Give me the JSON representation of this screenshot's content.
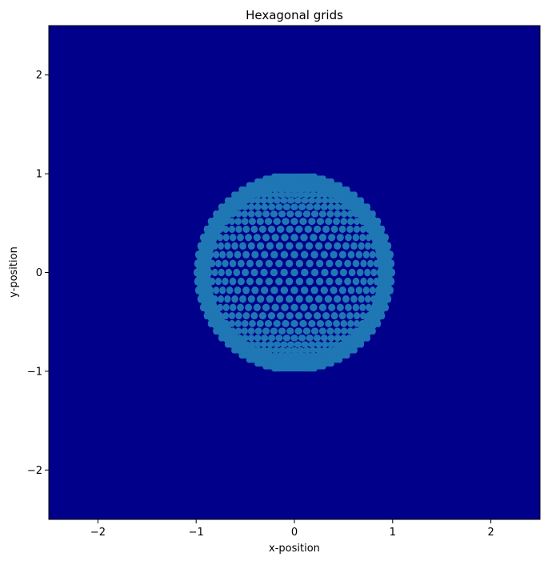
{
  "chart_data": {
    "type": "scatter",
    "title": "Hexagonal grids",
    "xlabel": "x-position",
    "ylabel": "y-position",
    "xlim": [
      -2.5,
      2.5
    ],
    "ylim": [
      -2.5,
      2.5
    ],
    "xticks": [
      -2,
      -1,
      0,
      1,
      2
    ],
    "yticks": [
      -2,
      -1,
      0,
      1,
      2
    ],
    "xtick_labels": [
      "−2",
      "−1",
      "0",
      "1",
      "2"
    ],
    "ytick_labels": [
      "−2",
      "−1",
      "0",
      "1",
      "2"
    ],
    "grid": false,
    "legend": "none",
    "background_color": "#00008b",
    "marker_color": "#1f77b4",
    "series": [
      {
        "shape": "disk",
        "center": [
          0,
          0
        ],
        "radius": 1.0,
        "pattern": "sphere-projected hexagonal grid of points with dark gaps between dots"
      }
    ]
  }
}
